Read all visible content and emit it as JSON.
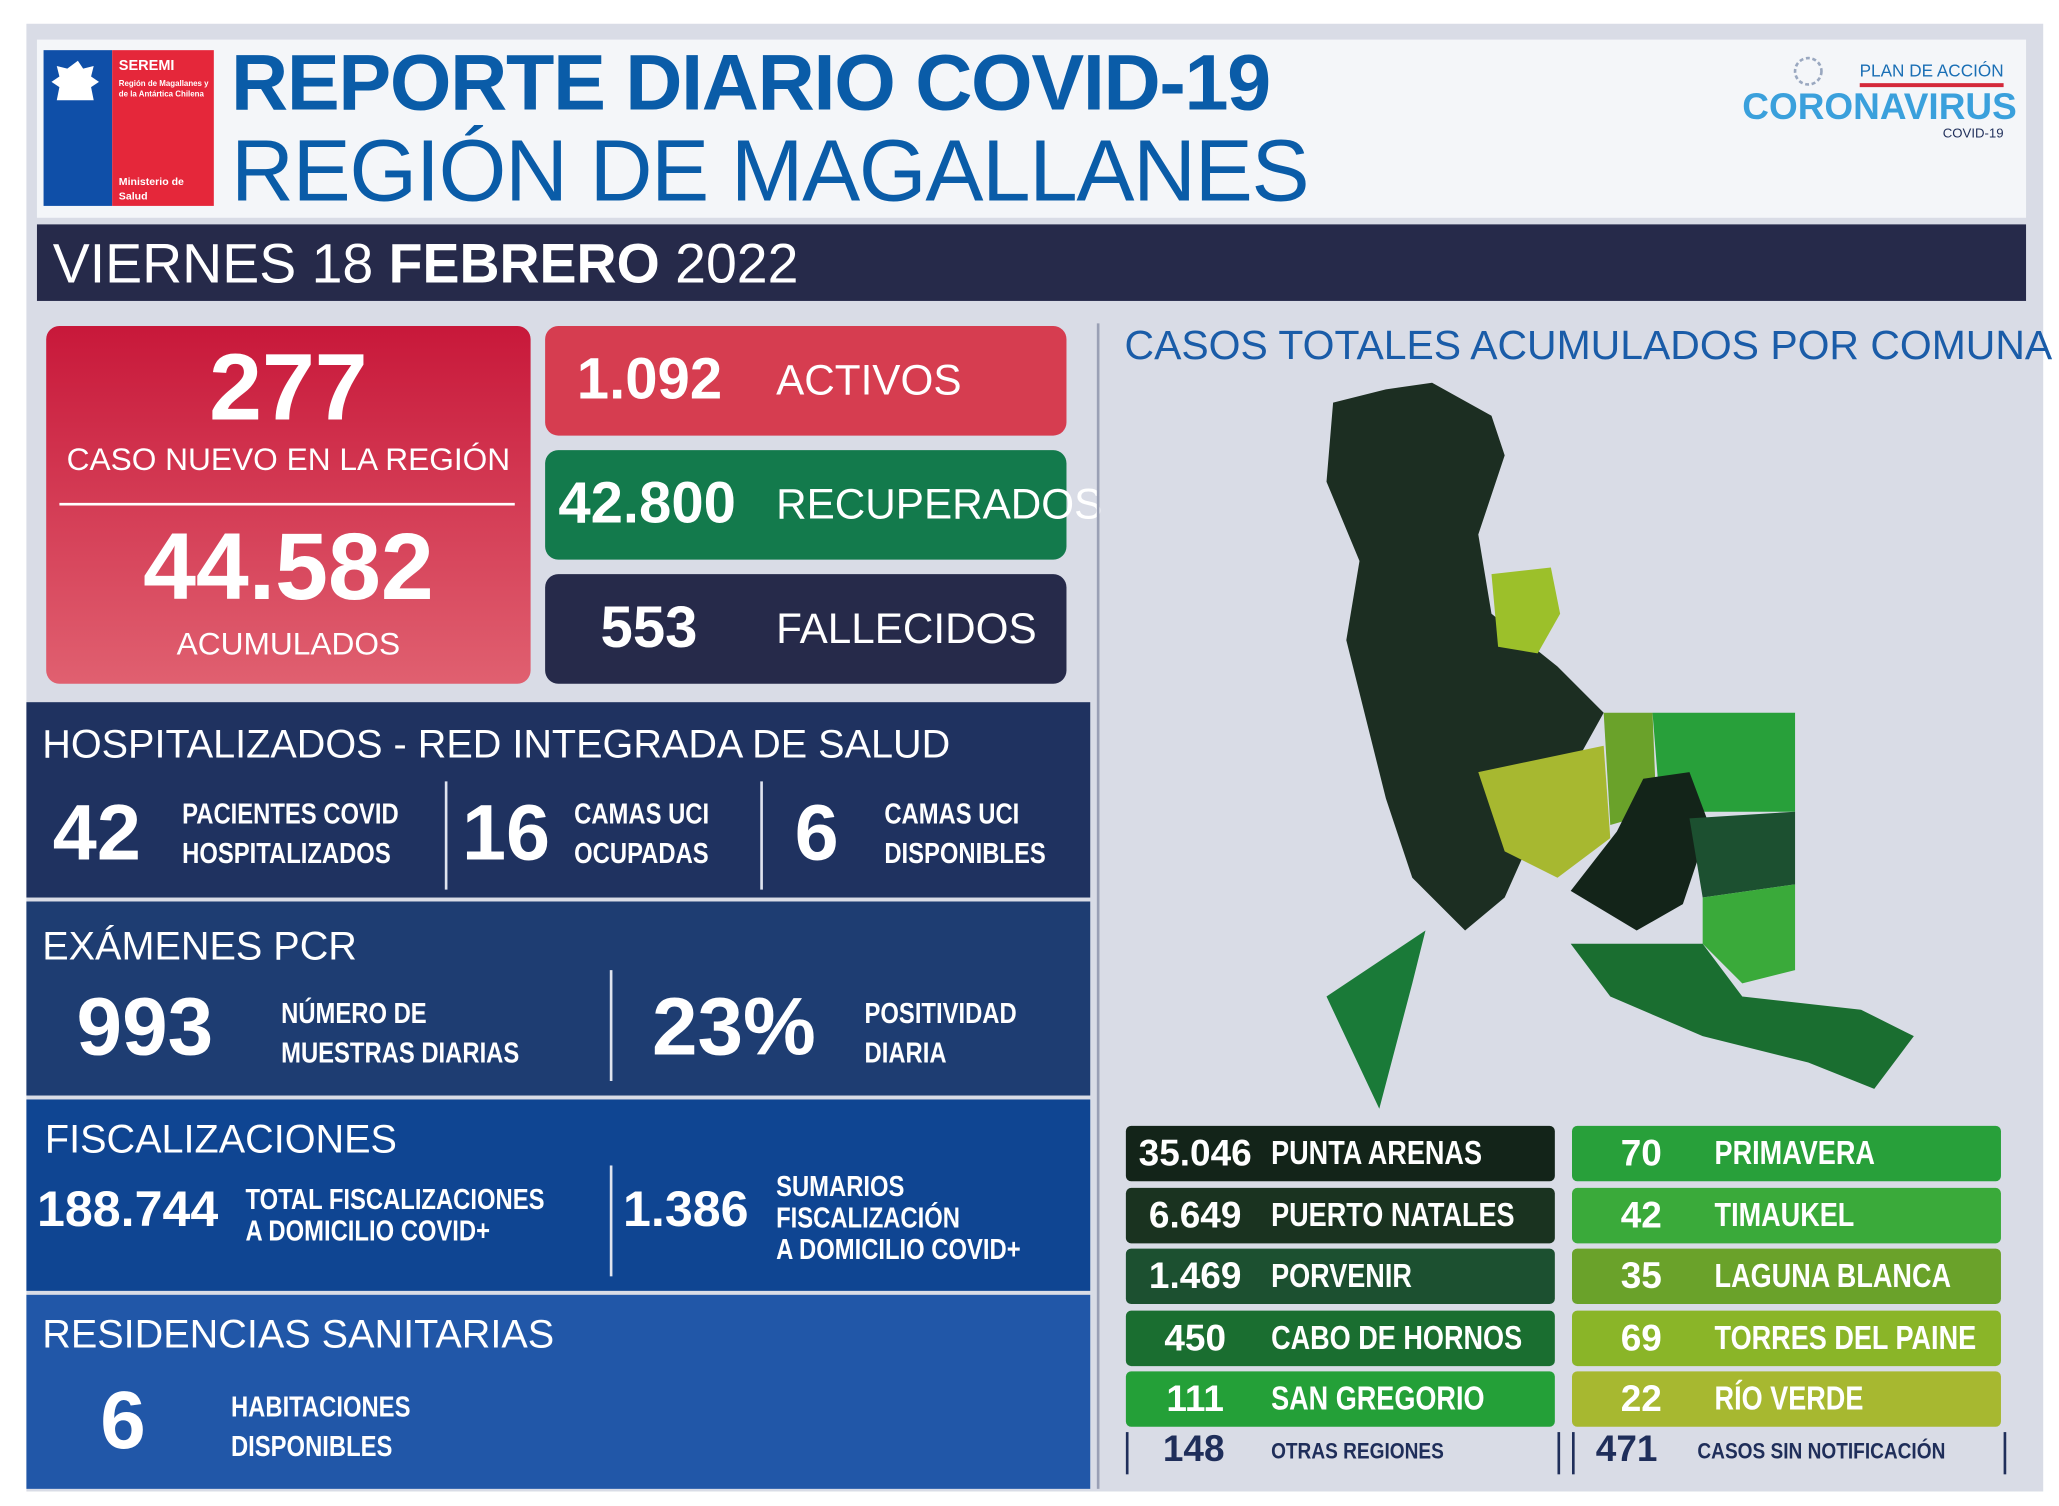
{
  "header": {
    "logo_title": "SEREMI",
    "logo_sub": "Región de Magallanes y de la Antártica Chilena",
    "logo_ministry": "Ministerio de Salud",
    "title_line1": "REPORTE DIARIO COVID-19",
    "title_line2": "REGIÓN DE MAGALLANES",
    "plan_top": "PLAN DE ACCIÓN",
    "plan_main": "CORONAVIRUS",
    "plan_sub": "COVID-19"
  },
  "date": {
    "weekday": "VIERNES",
    "day": "18",
    "month": "FEBRERO",
    "year": "2022"
  },
  "summary": {
    "new_cases": "277",
    "new_cases_label": "CASO NUEVO EN LA REGIÓN",
    "accumulated": "44.582",
    "accumulated_label": "ACUMULADOS",
    "active": "1.092",
    "active_label": "ACTIVOS",
    "recovered": "42.800",
    "recovered_label": "RECUPERADOS",
    "deaths": "553",
    "deaths_label": "FALLECIDOS"
  },
  "hospital": {
    "title": "HOSPITALIZADOS - RED INTEGRADA DE SALUD",
    "items": [
      {
        "value": "42",
        "line1": "PACIENTES COVID",
        "line2": "HOSPITALIZADOS"
      },
      {
        "value": "16",
        "line1": "CAMAS UCI",
        "line2": "OCUPADAS"
      },
      {
        "value": "6",
        "line1": "CAMAS UCI",
        "line2": "DISPONIBLES"
      }
    ]
  },
  "pcr": {
    "title": "EXÁMENES PCR",
    "samples": "993",
    "samples_l1": "NÚMERO DE",
    "samples_l2": "MUESTRAS DIARIAS",
    "positivity": "23%",
    "positivity_l1": "POSITIVIDAD",
    "positivity_l2": "DIARIA"
  },
  "fisc": {
    "title": "FISCALIZACIONES",
    "total": "188.744",
    "total_l1": "TOTAL FISCALIZACIONES",
    "total_l2": "A DOMICILIO COVID+",
    "sum": "1.386",
    "sum_l1": "SUMARIOS",
    "sum_l2": "FISCALIZACIÓN",
    "sum_l3": "A DOMICILIO COVID+"
  },
  "res": {
    "title": "RESIDENCIAS SANITARIAS",
    "value": "6",
    "l1": "HABITACIONES",
    "l2": "DISPONIBLES"
  },
  "comunas": {
    "title": "CASOS TOTALES ACUMULADOS POR COMUNA",
    "left": [
      {
        "value": "35.046",
        "name": "PUNTA ARENAS",
        "color": "#132419"
      },
      {
        "value": "6.649",
        "name": "PUERTO NATALES",
        "color": "#1a3320"
      },
      {
        "value": "1.469",
        "name": "PORVENIR",
        "color": "#1c5030"
      },
      {
        "value": "450",
        "name": "CABO DE HORNOS",
        "color": "#1a6e30"
      },
      {
        "value": "111",
        "name": "SAN GREGORIO",
        "color": "#24a038"
      }
    ],
    "right": [
      {
        "value": "70",
        "name": "PRIMAVERA",
        "color": "#28a03a"
      },
      {
        "value": "42",
        "name": "TIMAUKEL",
        "color": "#3aaa3a"
      },
      {
        "value": "35",
        "name": "LAGUNA BLANCA",
        "color": "#6aa22a"
      },
      {
        "value": "69",
        "name": "TORRES DEL PAINE",
        "color": "#8ab528"
      },
      {
        "value": "22",
        "name": "RÍO VERDE",
        "color": "#a7b830"
      }
    ],
    "other_value": "148",
    "other_label": "OTRAS REGIONES",
    "unnotified_value": "471",
    "unnotified_label": "CASOS SIN NOTIFICACIÓN"
  }
}
